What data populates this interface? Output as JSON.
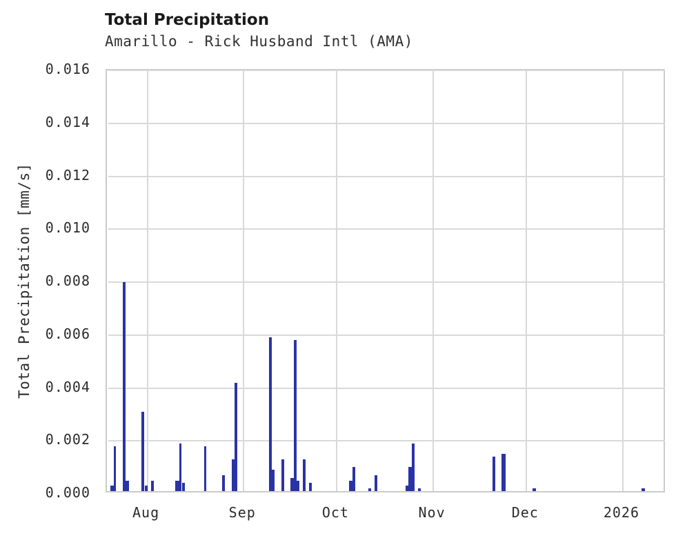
{
  "header": {
    "title": "Total Precipitation",
    "subtitle": "Amarillo - Rick Husband Intl (AMA)"
  },
  "colors": {
    "bar": "#2a33a5",
    "grid": "#d9d9d9",
    "spine": "#cbcbcb",
    "title_text": "#1a1a1a",
    "text": "#2b2b2b",
    "background": "#ffffff"
  },
  "chart_data": {
    "type": "bar",
    "title": "Total Precipitation",
    "subtitle": "Amarillo - Rick Husband Intl (AMA)",
    "xlabel": "",
    "ylabel": "Total Precipitation [mm/s]",
    "unit": "mm/s",
    "ylim": [
      0,
      0.016
    ],
    "grid": true,
    "legend": false,
    "yticks": [
      {
        "value": 0.0,
        "label": "0.000"
      },
      {
        "value": 0.002,
        "label": "0.002"
      },
      {
        "value": 0.004,
        "label": "0.004"
      },
      {
        "value": 0.006,
        "label": "0.006"
      },
      {
        "value": 0.008,
        "label": "0.008"
      },
      {
        "value": 0.01,
        "label": "0.010"
      },
      {
        "value": 0.012,
        "label": "0.012"
      },
      {
        "value": 0.014,
        "label": "0.014"
      },
      {
        "value": 0.016,
        "label": "0.016"
      }
    ],
    "x_domain": [
      "2025-07-19",
      "2026-01-15"
    ],
    "xticks": [
      {
        "date": "2025-08-01",
        "label": "Aug"
      },
      {
        "date": "2025-09-01",
        "label": "Sep"
      },
      {
        "date": "2025-10-01",
        "label": "Oct"
      },
      {
        "date": "2025-11-01",
        "label": "Nov"
      },
      {
        "date": "2025-12-01",
        "label": "Dec"
      },
      {
        "date": "2026-01-01",
        "label": "2026"
      }
    ],
    "series": [
      {
        "name": "Total Precipitation",
        "points": [
          {
            "date": "2025-07-21",
            "value": 0.0002,
            "w": 5
          },
          {
            "date": "2025-07-22",
            "value": 0.0017,
            "w": 3
          },
          {
            "date": "2025-07-25",
            "value": 0.0079,
            "w": 4
          },
          {
            "date": "2025-07-26",
            "value": 0.0004,
            "w": 5
          },
          {
            "date": "2025-07-31",
            "value": 0.003,
            "w": 4
          },
          {
            "date": "2025-08-01",
            "value": 0.0002,
            "w": 4
          },
          {
            "date": "2025-08-03",
            "value": 0.0004,
            "w": 4
          },
          {
            "date": "2025-08-11",
            "value": 0.0004,
            "w": 6
          },
          {
            "date": "2025-08-12",
            "value": 0.0018,
            "w": 3
          },
          {
            "date": "2025-08-13",
            "value": 0.0003,
            "w": 4
          },
          {
            "date": "2025-08-20",
            "value": 0.0017,
            "w": 3
          },
          {
            "date": "2025-08-26",
            "value": 0.0006,
            "w": 4
          },
          {
            "date": "2025-08-29",
            "value": 0.0012,
            "w": 4
          },
          {
            "date": "2025-08-30",
            "value": 0.0041,
            "w": 4
          },
          {
            "date": "2025-09-10",
            "value": 0.0058,
            "w": 4
          },
          {
            "date": "2025-09-11",
            "value": 0.0008,
            "w": 4
          },
          {
            "date": "2025-09-14",
            "value": 0.0012,
            "w": 4
          },
          {
            "date": "2025-09-17",
            "value": 0.0005,
            "w": 5
          },
          {
            "date": "2025-09-18",
            "value": 0.0057,
            "w": 4
          },
          {
            "date": "2025-09-19",
            "value": 0.0004,
            "w": 4
          },
          {
            "date": "2025-09-21",
            "value": 0.0012,
            "w": 4
          },
          {
            "date": "2025-09-23",
            "value": 0.0003,
            "w": 4
          },
          {
            "date": "2025-10-06",
            "value": 0.0004,
            "w": 6
          },
          {
            "date": "2025-10-07",
            "value": 0.0009,
            "w": 4
          },
          {
            "date": "2025-10-12",
            "value": 0.0001,
            "w": 4
          },
          {
            "date": "2025-10-14",
            "value": 0.0006,
            "w": 4
          },
          {
            "date": "2025-10-24",
            "value": 0.0002,
            "w": 4
          },
          {
            "date": "2025-10-25",
            "value": 0.0009,
            "w": 5
          },
          {
            "date": "2025-10-26",
            "value": 0.0018,
            "w": 4
          },
          {
            "date": "2025-10-28",
            "value": 0.0001,
            "w": 4
          },
          {
            "date": "2025-11-21",
            "value": 0.0013,
            "w": 4
          },
          {
            "date": "2025-11-24",
            "value": 0.0014,
            "w": 6
          },
          {
            "date": "2025-12-04",
            "value": 0.0001,
            "w": 5
          },
          {
            "date": "2026-01-08",
            "value": 0.0001,
            "w": 5
          }
        ]
      }
    ]
  }
}
